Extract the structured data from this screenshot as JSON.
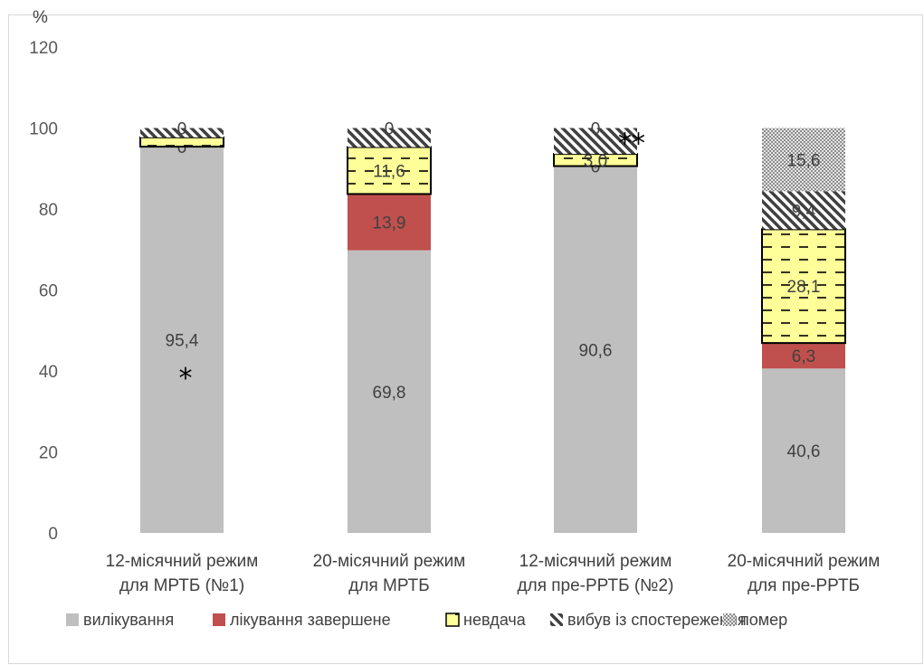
{
  "chart_data": {
    "type": "bar",
    "stacked": true,
    "unit_label": "%",
    "ylim": [
      0,
      120
    ],
    "y_ticks": [
      "0",
      "20",
      "40",
      "60",
      "80",
      "100",
      "120"
    ],
    "grid": false,
    "legend_position": "bottom",
    "categories": [
      [
        "12-місячний режим",
        "для МРТБ  (№1)"
      ],
      [
        "20-місячний режим",
        "для МРТБ"
      ],
      [
        "12-місячний режим",
        "для пре-РРТБ (№2)"
      ],
      [
        "20-місячний режим",
        "для пре-РРТБ"
      ]
    ],
    "series": [
      {
        "name": "вилікування",
        "values": [
          95.4,
          69.8,
          90.6,
          40.6
        ],
        "labels": [
          "95,4",
          "69,8",
          "90,6",
          "40,6"
        ],
        "color": "#bfbfbf",
        "pattern": "solid"
      },
      {
        "name": "лікування завершене",
        "values": [
          0,
          13.9,
          0,
          6.3
        ],
        "labels": [
          "0",
          "13,9",
          "0",
          "6,3"
        ],
        "color": "#c0504d",
        "pattern": "solid"
      },
      {
        "name": "невдача",
        "values": [
          2.3,
          11.6,
          3.0,
          28.1
        ],
        "labels": [
          "",
          "11,6",
          "3,0",
          "28,1"
        ],
        "color": "#ffff99",
        "pattern": "dashes"
      },
      {
        "name": "вибув із спостереження",
        "values": [
          2.3,
          4.7,
          6.4,
          9.4
        ],
        "labels": [
          "",
          "",
          "",
          "9,4"
        ],
        "color": "#404040",
        "pattern": "diagonal"
      },
      {
        "name": "помер",
        "values": [
          0,
          0,
          0,
          15.6
        ],
        "labels": [
          "0",
          "0",
          "0",
          "15,6"
        ],
        "color": "#a6a6a6",
        "pattern": "checker"
      }
    ],
    "annotations": [
      {
        "category_index": 0,
        "text": "*",
        "y": 40
      },
      {
        "category_index": 2,
        "text": "**",
        "y": 98
      }
    ]
  }
}
